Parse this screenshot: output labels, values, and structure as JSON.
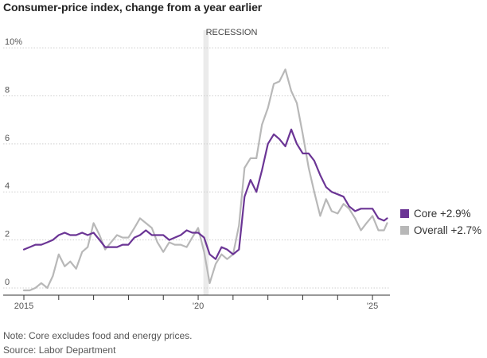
{
  "chart_data": {
    "type": "line",
    "title": "Consumer-price index, change from a year earlier",
    "y_tick_labels": [
      "10%",
      "8",
      "6",
      "4",
      "2",
      "0"
    ],
    "y_ticks": [
      10,
      8,
      6,
      4,
      2,
      0
    ],
    "ylim": [
      -0.3,
      10.5
    ],
    "xlim": [
      2015.0,
      2025.5
    ],
    "x_ticks": [
      {
        "value": 2015,
        "label": "2015"
      },
      {
        "value": 2016,
        "label": ""
      },
      {
        "value": 2017,
        "label": ""
      },
      {
        "value": 2018,
        "label": ""
      },
      {
        "value": 2019,
        "label": ""
      },
      {
        "value": 2020,
        "label": "'20"
      },
      {
        "value": 2021,
        "label": ""
      },
      {
        "value": 2022,
        "label": ""
      },
      {
        "value": 2023,
        "label": ""
      },
      {
        "value": 2024,
        "label": ""
      },
      {
        "value": 2025,
        "label": "'25"
      }
    ],
    "grid": true,
    "legend_position": "right",
    "recession": {
      "label": "RECESSION",
      "start": 2020.15,
      "end": 2020.3
    },
    "series": [
      {
        "name": "Core",
        "legend_label": "Core +2.9%",
        "color": "#6b3595",
        "points": [
          [
            2015.0,
            1.6
          ],
          [
            2015.17,
            1.7
          ],
          [
            2015.33,
            1.8
          ],
          [
            2015.5,
            1.8
          ],
          [
            2015.67,
            1.9
          ],
          [
            2015.83,
            2.0
          ],
          [
            2016.0,
            2.2
          ],
          [
            2016.17,
            2.3
          ],
          [
            2016.33,
            2.2
          ],
          [
            2016.5,
            2.2
          ],
          [
            2016.67,
            2.3
          ],
          [
            2016.83,
            2.2
          ],
          [
            2017.0,
            2.3
          ],
          [
            2017.17,
            2.0
          ],
          [
            2017.33,
            1.7
          ],
          [
            2017.5,
            1.7
          ],
          [
            2017.67,
            1.7
          ],
          [
            2017.83,
            1.8
          ],
          [
            2018.0,
            1.8
          ],
          [
            2018.17,
            2.1
          ],
          [
            2018.33,
            2.2
          ],
          [
            2018.5,
            2.4
          ],
          [
            2018.67,
            2.2
          ],
          [
            2018.83,
            2.2
          ],
          [
            2019.0,
            2.2
          ],
          [
            2019.17,
            2.0
          ],
          [
            2019.33,
            2.1
          ],
          [
            2019.5,
            2.2
          ],
          [
            2019.67,
            2.4
          ],
          [
            2019.83,
            2.3
          ],
          [
            2020.0,
            2.3
          ],
          [
            2020.17,
            2.1
          ],
          [
            2020.33,
            1.4
          ],
          [
            2020.5,
            1.2
          ],
          [
            2020.67,
            1.7
          ],
          [
            2020.83,
            1.6
          ],
          [
            2021.0,
            1.4
          ],
          [
            2021.17,
            1.6
          ],
          [
            2021.33,
            3.8
          ],
          [
            2021.5,
            4.5
          ],
          [
            2021.67,
            4.0
          ],
          [
            2021.83,
            4.9
          ],
          [
            2022.0,
            6.0
          ],
          [
            2022.17,
            6.4
          ],
          [
            2022.33,
            6.2
          ],
          [
            2022.5,
            5.9
          ],
          [
            2022.67,
            6.6
          ],
          [
            2022.83,
            6.0
          ],
          [
            2023.0,
            5.6
          ],
          [
            2023.17,
            5.6
          ],
          [
            2023.33,
            5.3
          ],
          [
            2023.5,
            4.7
          ],
          [
            2023.67,
            4.2
          ],
          [
            2023.83,
            4.0
          ],
          [
            2024.0,
            3.9
          ],
          [
            2024.17,
            3.8
          ],
          [
            2024.33,
            3.4
          ],
          [
            2024.5,
            3.2
          ],
          [
            2024.67,
            3.3
          ],
          [
            2024.83,
            3.3
          ],
          [
            2025.0,
            3.3
          ],
          [
            2025.17,
            2.9
          ],
          [
            2025.33,
            2.8
          ],
          [
            2025.42,
            2.9
          ]
        ]
      },
      {
        "name": "Overall",
        "legend_label": "Overall +2.7%",
        "color": "#b8b8b8",
        "points": [
          [
            2015.0,
            -0.1
          ],
          [
            2015.17,
            -0.1
          ],
          [
            2015.33,
            0.0
          ],
          [
            2015.5,
            0.2
          ],
          [
            2015.67,
            0.0
          ],
          [
            2015.83,
            0.5
          ],
          [
            2016.0,
            1.4
          ],
          [
            2016.17,
            0.9
          ],
          [
            2016.33,
            1.1
          ],
          [
            2016.5,
            0.8
          ],
          [
            2016.67,
            1.5
          ],
          [
            2016.83,
            1.7
          ],
          [
            2017.0,
            2.7
          ],
          [
            2017.17,
            2.2
          ],
          [
            2017.33,
            1.6
          ],
          [
            2017.5,
            1.9
          ],
          [
            2017.67,
            2.2
          ],
          [
            2017.83,
            2.1
          ],
          [
            2018.0,
            2.1
          ],
          [
            2018.17,
            2.5
          ],
          [
            2018.33,
            2.9
          ],
          [
            2018.5,
            2.7
          ],
          [
            2018.67,
            2.5
          ],
          [
            2018.83,
            1.9
          ],
          [
            2019.0,
            1.5
          ],
          [
            2019.17,
            1.9
          ],
          [
            2019.33,
            1.8
          ],
          [
            2019.5,
            1.8
          ],
          [
            2019.67,
            1.7
          ],
          [
            2019.83,
            2.1
          ],
          [
            2020.0,
            2.5
          ],
          [
            2020.17,
            1.5
          ],
          [
            2020.33,
            0.2
          ],
          [
            2020.5,
            1.0
          ],
          [
            2020.67,
            1.4
          ],
          [
            2020.83,
            1.2
          ],
          [
            2021.0,
            1.4
          ],
          [
            2021.17,
            2.6
          ],
          [
            2021.33,
            5.0
          ],
          [
            2021.5,
            5.4
          ],
          [
            2021.67,
            5.4
          ],
          [
            2021.83,
            6.8
          ],
          [
            2022.0,
            7.5
          ],
          [
            2022.17,
            8.5
          ],
          [
            2022.33,
            8.6
          ],
          [
            2022.5,
            9.1
          ],
          [
            2022.67,
            8.2
          ],
          [
            2022.83,
            7.7
          ],
          [
            2023.0,
            6.4
          ],
          [
            2023.17,
            5.0
          ],
          [
            2023.33,
            4.0
          ],
          [
            2023.5,
            3.0
          ],
          [
            2023.67,
            3.7
          ],
          [
            2023.83,
            3.2
          ],
          [
            2024.0,
            3.1
          ],
          [
            2024.17,
            3.5
          ],
          [
            2024.33,
            3.3
          ],
          [
            2024.5,
            2.9
          ],
          [
            2024.67,
            2.4
          ],
          [
            2024.83,
            2.7
          ],
          [
            2025.0,
            3.0
          ],
          [
            2025.17,
            2.4
          ],
          [
            2025.33,
            2.4
          ],
          [
            2025.42,
            2.7
          ]
        ]
      }
    ]
  },
  "footer": {
    "note": "Note: Core excludes food and energy prices.",
    "source": "Source: Labor Department"
  }
}
